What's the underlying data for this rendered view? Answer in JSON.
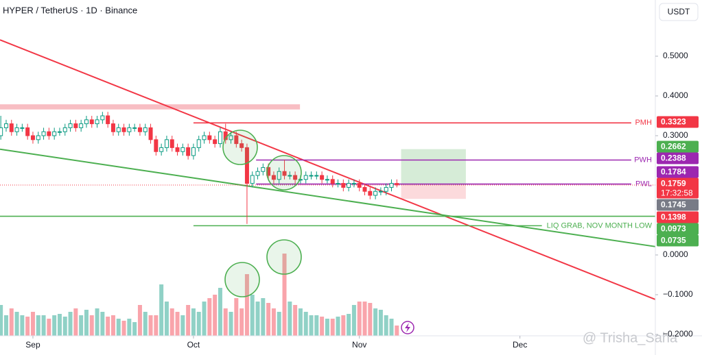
{
  "chart_data": {
    "type": "candlestick",
    "title": "HYPER / TetherUS · 1D · Binance",
    "currency": "USDT",
    "watermark": "@ Trisha_Saha",
    "xlim": [
      -6.15,
      116.3
    ],
    "ylim": [
      -0.2,
      0.62
    ],
    "xticks": [
      {
        "value": 0,
        "label": "Sep"
      },
      {
        "value": 30,
        "label": "Oct"
      },
      {
        "value": 61,
        "label": "Nov"
      },
      {
        "value": 91,
        "label": "Dec"
      }
    ],
    "yticks": [
      {
        "value": 0.5,
        "label": "0.5000"
      },
      {
        "value": 0.4,
        "label": "0.4000"
      },
      {
        "value": 0.3,
        "label": "0.3000"
      },
      {
        "value": 0,
        "label": "0.0000"
      },
      {
        "value": -0.1,
        "label": "−0.1000"
      },
      {
        "value": -0.2,
        "label": "−0.2000"
      }
    ],
    "up_color": "#089981",
    "down_color": "#f23645",
    "x": [
      -6,
      -5,
      -4,
      -3,
      -2,
      -1,
      0,
      1,
      2,
      3,
      4,
      5,
      6,
      7,
      8,
      9,
      10,
      11,
      12,
      13,
      14,
      15,
      16,
      17,
      18,
      19,
      20,
      21,
      22,
      23,
      24,
      25,
      26,
      27,
      28,
      29,
      30,
      31,
      32,
      33,
      34,
      35,
      36,
      37,
      38,
      39,
      40,
      41,
      42,
      43,
      44,
      45,
      46,
      47,
      48,
      49,
      50,
      51,
      52,
      53,
      54,
      55,
      56,
      57,
      58,
      59,
      60,
      61,
      62,
      63,
      64,
      65,
      66,
      67,
      68
    ],
    "open": [
      0.3,
      0.32,
      0.33,
      0.31,
      0.32,
      0.32,
      0.3,
      0.29,
      0.3,
      0.31,
      0.3,
      0.31,
      0.31,
      0.32,
      0.33,
      0.32,
      0.33,
      0.34,
      0.33,
      0.34,
      0.35,
      0.33,
      0.31,
      0.32,
      0.31,
      0.32,
      0.32,
      0.31,
      0.32,
      0.29,
      0.26,
      0.27,
      0.29,
      0.27,
      0.26,
      0.27,
      0.25,
      0.27,
      0.29,
      0.3,
      0.29,
      0.28,
      0.31,
      0.29,
      0.3,
      0.28,
      0.27,
      0.18,
      0.2,
      0.21,
      0.22,
      0.2,
      0.19,
      0.21,
      0.2,
      0.2,
      0.19,
      0.19,
      0.2,
      0.2,
      0.2,
      0.19,
      0.19,
      0.18,
      0.18,
      0.17,
      0.18,
      0.18,
      0.17,
      0.16,
      0.15,
      0.16,
      0.16,
      0.17,
      0.18
    ],
    "high": [
      0.35,
      0.34,
      0.34,
      0.33,
      0.33,
      0.33,
      0.31,
      0.31,
      0.32,
      0.32,
      0.32,
      0.32,
      0.33,
      0.34,
      0.34,
      0.34,
      0.35,
      0.35,
      0.35,
      0.36,
      0.36,
      0.34,
      0.33,
      0.33,
      0.33,
      0.33,
      0.33,
      0.33,
      0.33,
      0.3,
      0.28,
      0.3,
      0.3,
      0.28,
      0.28,
      0.28,
      0.28,
      0.3,
      0.31,
      0.31,
      0.3,
      0.32,
      0.33,
      0.31,
      0.31,
      0.29,
      0.28,
      0.21,
      0.22,
      0.23,
      0.23,
      0.21,
      0.22,
      0.24,
      0.21,
      0.21,
      0.2,
      0.21,
      0.21,
      0.21,
      0.21,
      0.2,
      0.2,
      0.19,
      0.19,
      0.19,
      0.19,
      0.19,
      0.18,
      0.17,
      0.17,
      0.17,
      0.18,
      0.19,
      0.19
    ],
    "low": [
      0.29,
      0.31,
      0.3,
      0.3,
      0.31,
      0.29,
      0.28,
      0.28,
      0.29,
      0.29,
      0.29,
      0.3,
      0.3,
      0.31,
      0.31,
      0.31,
      0.32,
      0.32,
      0.32,
      0.33,
      0.32,
      0.3,
      0.3,
      0.3,
      0.3,
      0.31,
      0.3,
      0.3,
      0.28,
      0.25,
      0.25,
      0.26,
      0.26,
      0.25,
      0.25,
      0.24,
      0.24,
      0.26,
      0.28,
      0.28,
      0.27,
      0.27,
      0.28,
      0.28,
      0.27,
      0.26,
      0.078,
      0.17,
      0.19,
      0.2,
      0.19,
      0.18,
      0.18,
      0.19,
      0.19,
      0.18,
      0.18,
      0.18,
      0.19,
      0.19,
      0.18,
      0.18,
      0.17,
      0.17,
      0.16,
      0.16,
      0.17,
      0.16,
      0.15,
      0.14,
      0.14,
      0.15,
      0.15,
      0.16,
      0.17
    ],
    "close": [
      0.32,
      0.33,
      0.31,
      0.32,
      0.32,
      0.3,
      0.29,
      0.3,
      0.31,
      0.3,
      0.31,
      0.31,
      0.32,
      0.33,
      0.32,
      0.33,
      0.34,
      0.33,
      0.34,
      0.35,
      0.33,
      0.31,
      0.32,
      0.31,
      0.32,
      0.32,
      0.31,
      0.32,
      0.29,
      0.26,
      0.27,
      0.29,
      0.27,
      0.26,
      0.27,
      0.25,
      0.27,
      0.29,
      0.3,
      0.29,
      0.28,
      0.31,
      0.29,
      0.3,
      0.28,
      0.27,
      0.18,
      0.2,
      0.21,
      0.22,
      0.2,
      0.19,
      0.21,
      0.2,
      0.2,
      0.19,
      0.19,
      0.2,
      0.2,
      0.2,
      0.19,
      0.19,
      0.18,
      0.18,
      0.17,
      0.18,
      0.18,
      0.17,
      0.16,
      0.15,
      0.16,
      0.16,
      0.17,
      0.18,
      0.176
    ],
    "volume": [
      45,
      30,
      40,
      35,
      30,
      28,
      35,
      30,
      30,
      25,
      30,
      32,
      28,
      35,
      40,
      30,
      38,
      30,
      40,
      35,
      28,
      30,
      25,
      22,
      25,
      20,
      45,
      35,
      30,
      30,
      75,
      50,
      40,
      35,
      30,
      45,
      40,
      35,
      50,
      55,
      60,
      70,
      40,
      35,
      55,
      40,
      90,
      60,
      50,
      55,
      48,
      40,
      35,
      120,
      50,
      45,
      40,
      35,
      30,
      30,
      28,
      25,
      25,
      28,
      30,
      32,
      45,
      50,
      50,
      48,
      40,
      38,
      30,
      25,
      15
    ],
    "trendlines": [
      {
        "color": "#f23645",
        "points": [
          [
            -6.15,
            0.541
          ],
          [
            116.3,
            -0.112
          ]
        ]
      },
      {
        "color": "#4caf50",
        "points": [
          [
            -6.15,
            0.266
          ],
          [
            116.3,
            0.021
          ]
        ]
      }
    ],
    "levels": [
      {
        "value": 0.3323,
        "color": "#f23645",
        "from": 30,
        "to": 111.8,
        "label": "PMH"
      },
      {
        "value": 0.2388,
        "color": "#9c27b0",
        "from": 41.7,
        "to": 111.8,
        "label": "PWH"
      },
      {
        "value": 0.1784,
        "color": "#9c27b0",
        "from": 41.7,
        "to": 111.8,
        "label": "PWL"
      },
      {
        "value": 0.0973,
        "color": "#4caf50",
        "from": -6.15,
        "to": 116.3
      },
      {
        "value": 0.0735,
        "color": "#4caf50",
        "from": 30,
        "to": 95.1,
        "label": "LIQ GRAB, NOV MONTH LOW"
      }
    ],
    "zones": [
      {
        "color": "#f7b3b8",
        "ylim": [
          0.366,
          0.379
        ],
        "xlim": [
          -6.15,
          49.9
        ]
      },
      {
        "color": "#cfe9d0",
        "ylim": [
          0.176,
          0.2662
        ],
        "xlim": [
          68.8,
          80.9
        ]
      },
      {
        "color": "#fbd3d6",
        "ylim": [
          0.141,
          0.176
        ],
        "xlim": [
          68.8,
          80.9
        ]
      }
    ],
    "current_price": 0.1759,
    "countdown": "17:32:58",
    "price_labels": [
      {
        "value": 0.3323,
        "color": "#f23645"
      },
      {
        "value": 0.2662,
        "color": "#4caf50"
      },
      {
        "value": 0.2388,
        "color": "#9c27b0"
      },
      {
        "value": 0.1784,
        "color": "#9c27b0"
      },
      {
        "value": 0.1759,
        "color": "#f23645"
      },
      {
        "value": 0.1745,
        "color": "#787b86"
      },
      {
        "value": 0.1398,
        "color": "#f23645"
      },
      {
        "value": 0.0973,
        "color": "#4caf50"
      },
      {
        "value": 0.0735,
        "color": "#4caf50"
      }
    ]
  }
}
